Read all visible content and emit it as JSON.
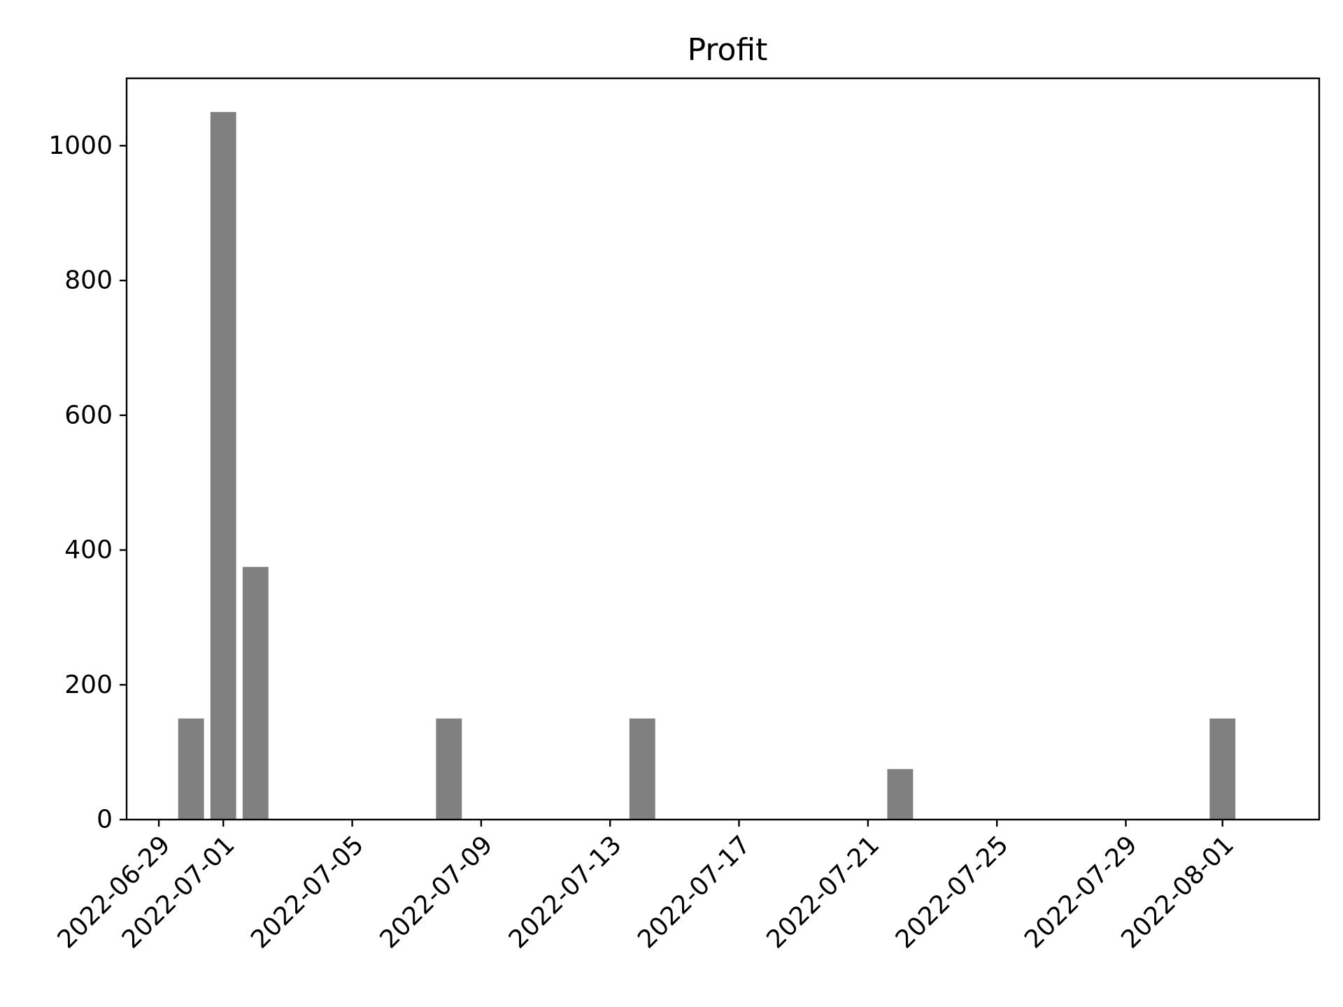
{
  "chart_data": {
    "type": "bar",
    "title": "Profit",
    "xlabel": "",
    "ylabel": "",
    "x_axis_kind": "date",
    "categories": [
      "2022-06-30",
      "2022-07-01",
      "2022-07-02",
      "2022-07-08",
      "2022-07-14",
      "2022-07-22",
      "2022-08-01"
    ],
    "values": [
      150,
      1050,
      375,
      150,
      150,
      75,
      150
    ],
    "xlim": [
      "2022-06-28",
      "2022-08-04"
    ],
    "ylim": [
      0,
      1100
    ],
    "x_ticks": [
      "2022-06-29",
      "2022-07-01",
      "2022-07-05",
      "2022-07-09",
      "2022-07-13",
      "2022-07-17",
      "2022-07-21",
      "2022-07-25",
      "2022-07-29",
      "2022-08-01"
    ],
    "y_ticks": [
      0,
      200,
      400,
      600,
      800,
      1000
    ],
    "grid": false,
    "legend": "none",
    "colors": {
      "bar": "#808080",
      "axis": "#000000",
      "background": "#ffffff"
    }
  }
}
